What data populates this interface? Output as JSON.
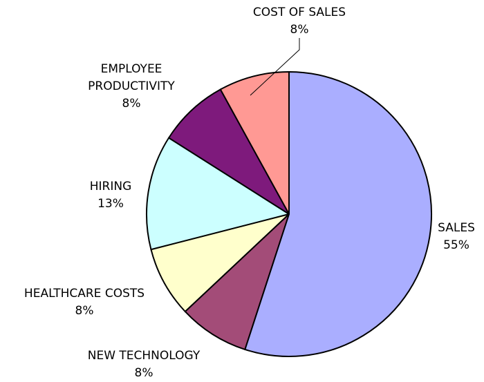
{
  "chart_data": {
    "type": "pie",
    "categories": [
      "SALES",
      "NEW TECHNOLOGY",
      "HEALTHCARE COSTS",
      "HIRING",
      "EMPLOYEE PRODUCTIVITY",
      "COST OF SALES"
    ],
    "values": [
      55,
      8,
      8,
      13,
      8,
      8
    ],
    "value_labels": [
      "55%",
      "8%",
      "8%",
      "13%",
      "8%",
      "8%"
    ],
    "colors": [
      "#aaaeff",
      "#a34c78",
      "#ffffcc",
      "#ccffff",
      "#7e1a7c",
      "#ff9994"
    ]
  }
}
